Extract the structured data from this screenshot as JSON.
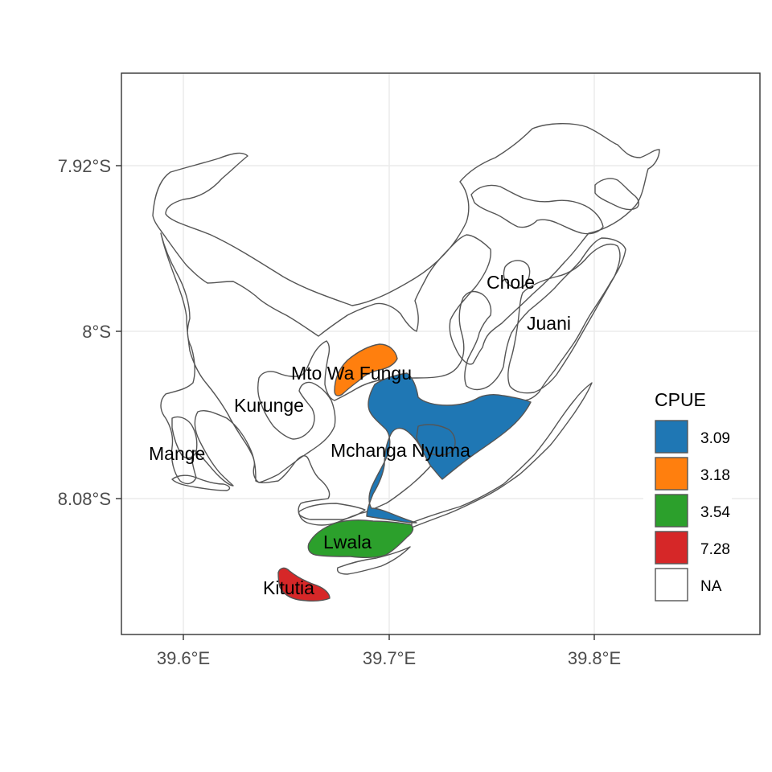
{
  "map": {
    "type": "choropleth",
    "x_axis": {
      "ticks": [
        "39.6°E",
        "39.7°E",
        "39.8°E"
      ]
    },
    "y_axis": {
      "ticks": [
        "7.92°S",
        "8°S",
        "8.08°S"
      ]
    },
    "grid": true,
    "places": [
      "Chole",
      "Juani",
      "Mto Wa Fungu",
      "Kurunge",
      "Mange",
      "Mchanga Nyuma",
      "Lwala",
      "Kitutia"
    ],
    "zones": [
      {
        "place": "Mchanga Nyuma",
        "cpue": "3.09",
        "color": "#1f77b4"
      },
      {
        "place": "Mto Wa Fungu",
        "cpue": "3.18",
        "color": "#ff7f0e"
      },
      {
        "place": "Lwala",
        "cpue": "3.54",
        "color": "#2ca02c"
      },
      {
        "place": "Kitutia",
        "cpue": "7.28",
        "color": "#d62728"
      }
    ]
  },
  "legend": {
    "title": "CPUE",
    "placement": "right",
    "items": [
      {
        "label": "3.09",
        "color": "#1f77b4"
      },
      {
        "label": "3.18",
        "color": "#ff7f0e"
      },
      {
        "label": "3.54",
        "color": "#2ca02c"
      },
      {
        "label": "7.28",
        "color": "#d62728"
      },
      {
        "label": "NA",
        "color": "#ffffff"
      }
    ]
  }
}
